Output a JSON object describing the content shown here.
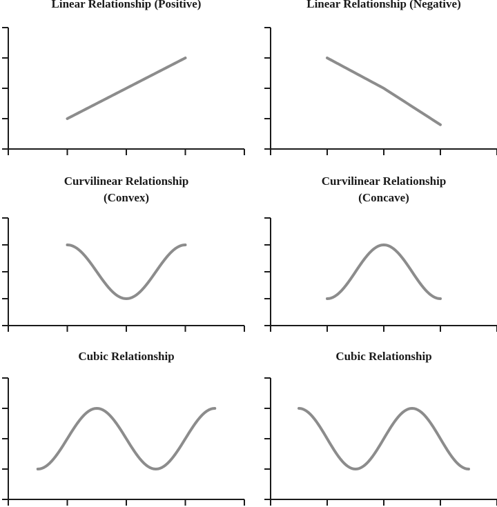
{
  "chart_data": [
    {
      "type": "line",
      "title": [
        "Linear Relationship (Positive)"
      ],
      "xlim": [
        0,
        4
      ],
      "ylim": [
        0,
        4
      ],
      "series": [
        {
          "x": [
            1,
            2,
            3
          ],
          "y": [
            1,
            2,
            3
          ]
        }
      ]
    },
    {
      "type": "line",
      "title": [
        "Linear Relationship (Negative)"
      ],
      "xlim": [
        0,
        4
      ],
      "ylim": [
        0,
        4
      ],
      "series": [
        {
          "x": [
            1,
            2,
            3
          ],
          "y": [
            3,
            2,
            0.8
          ]
        }
      ]
    },
    {
      "type": "line",
      "title": [
        "Curvilinear Relationship",
        "(Convex)"
      ],
      "xlim": [
        0,
        4
      ],
      "ylim": [
        0,
        4
      ],
      "series": [
        {
          "x": [
            1,
            2,
            3
          ],
          "y": [
            3,
            1,
            3
          ]
        }
      ]
    },
    {
      "type": "line",
      "title": [
        "Curvilinear Relationship",
        "(Concave)"
      ],
      "xlim": [
        0,
        4
      ],
      "ylim": [
        0,
        4
      ],
      "series": [
        {
          "x": [
            1,
            2,
            3
          ],
          "y": [
            1,
            3,
            1
          ]
        }
      ]
    },
    {
      "type": "line",
      "title": [
        "Cubic Relationship"
      ],
      "xlim": [
        0,
        4
      ],
      "ylim": [
        0,
        4
      ],
      "series": [
        {
          "x": [
            0.5,
            1.5,
            2.5,
            3.5
          ],
          "y": [
            1,
            3,
            1,
            3
          ]
        }
      ]
    },
    {
      "type": "line",
      "title": [
        "Cubic Relationship"
      ],
      "xlim": [
        0,
        4
      ],
      "ylim": [
        0,
        4
      ],
      "series": [
        {
          "x": [
            0.5,
            1.5,
            2.5,
            3.5
          ],
          "y": [
            3,
            1,
            3,
            1
          ]
        }
      ]
    }
  ],
  "style": {
    "curve_color": "#8c8c8c",
    "axis_color": "#1a1a1a"
  }
}
